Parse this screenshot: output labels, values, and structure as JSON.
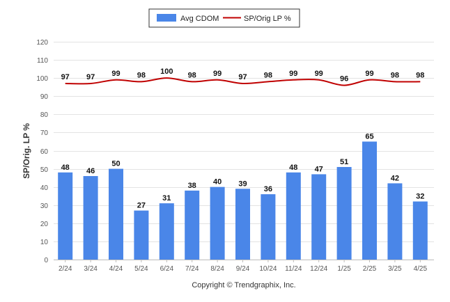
{
  "chart_data": {
    "type": "bar",
    "categories": [
      "2/24",
      "3/24",
      "4/24",
      "5/24",
      "6/24",
      "7/24",
      "8/24",
      "9/24",
      "10/24",
      "11/24",
      "12/24",
      "1/25",
      "2/25",
      "3/25",
      "4/25"
    ],
    "series": [
      {
        "name": "Avg CDOM",
        "kind": "bar",
        "color": "#4a86e8",
        "values": [
          48,
          46,
          50,
          27,
          31,
          38,
          40,
          39,
          36,
          48,
          47,
          51,
          65,
          42,
          32
        ]
      },
      {
        "name": "SP/Orig LP %",
        "kind": "line",
        "color": "#c00000",
        "values": [
          97,
          97,
          99,
          98,
          100,
          98,
          99,
          97,
          98,
          99,
          99,
          96,
          99,
          98,
          98
        ]
      }
    ],
    "ylabel": "SP/Orig. LP %",
    "xlabel": "",
    "ylim": [
      0,
      120
    ],
    "yticks": [
      0,
      10,
      20,
      30,
      40,
      50,
      60,
      70,
      80,
      90,
      100,
      110,
      120
    ],
    "grid": true,
    "legend_position": "top-center"
  },
  "credit": "Copyright © Trendgraphix, Inc."
}
